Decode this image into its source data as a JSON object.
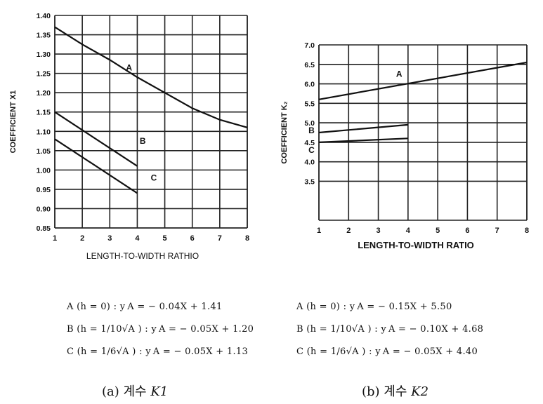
{
  "chart_data": [
    {
      "type": "line",
      "title": "",
      "xlabel": "LENGTH-TO-WIDTH RATHIO",
      "ylabel": "COEFFICIENT X1",
      "xlim": [
        1,
        8
      ],
      "ylim": [
        0.85,
        1.4
      ],
      "grid": true,
      "x_ticks": [
        "1",
        "2",
        "3",
        "4",
        "5",
        "6",
        "7",
        "8"
      ],
      "y_ticks": [
        "0.85",
        "0.90",
        "0.95",
        "1.00",
        "1.05",
        "1.10",
        "1.15",
        "1.20",
        "1.25",
        "1.30",
        "1.35",
        "1.40"
      ],
      "series": [
        {
          "name": "A",
          "x": [
            1,
            2,
            3,
            4,
            5,
            6,
            7,
            8
          ],
          "values": [
            1.37,
            1.325,
            1.285,
            1.24,
            1.2,
            1.16,
            1.13,
            1.11
          ]
        },
        {
          "name": "B",
          "x": [
            1,
            4
          ],
          "values": [
            1.15,
            1.01
          ]
        },
        {
          "name": "C",
          "x": [
            1,
            4
          ],
          "values": [
            1.08,
            0.94
          ]
        }
      ]
    },
    {
      "type": "line",
      "title": "",
      "xlabel": "LENGTH-TO-WIDTH RATIO",
      "ylabel": "COEFFICIENT K₂",
      "xlim": [
        1,
        8
      ],
      "ylim": [
        2.5,
        7.0
      ],
      "grid": true,
      "x_ticks": [
        "1",
        "2",
        "3",
        "4",
        "5",
        "6",
        "7",
        "8"
      ],
      "y_ticks": [
        "3.5",
        "4.0",
        "4.5",
        "5.0",
        "5.5",
        "6.0",
        "6.5",
        "7.0"
      ],
      "series": [
        {
          "name": "A",
          "x": [
            1,
            8
          ],
          "values": [
            5.6,
            6.55
          ]
        },
        {
          "name": "B",
          "x": [
            1,
            4
          ],
          "values": [
            4.75,
            4.95
          ]
        },
        {
          "name": "C",
          "x": [
            1,
            4
          ],
          "values": [
            4.5,
            4.6
          ]
        }
      ]
    }
  ],
  "equations_left": [
    "A (h = 0) : y A = − 0.04X + 1.41",
    "B (h = 1/10√A ) : y A = − 0.05X + 1.20",
    "C (h = 1/6√A ) : y A = − 0.05X + 1.13"
  ],
  "equations_right": [
    "A (h = 0) : y A = − 0.15X + 5.50",
    "B (h = 1/10√A ) : y A = − 0.10X + 4.68",
    "C (h = 1/6√A ) : y A = − 0.05X + 4.40"
  ],
  "captions": {
    "left": {
      "prefix": "(a)  계수 ",
      "symbol": "K1"
    },
    "right": {
      "prefix": "(b)  계수 ",
      "symbol": "K2"
    }
  }
}
